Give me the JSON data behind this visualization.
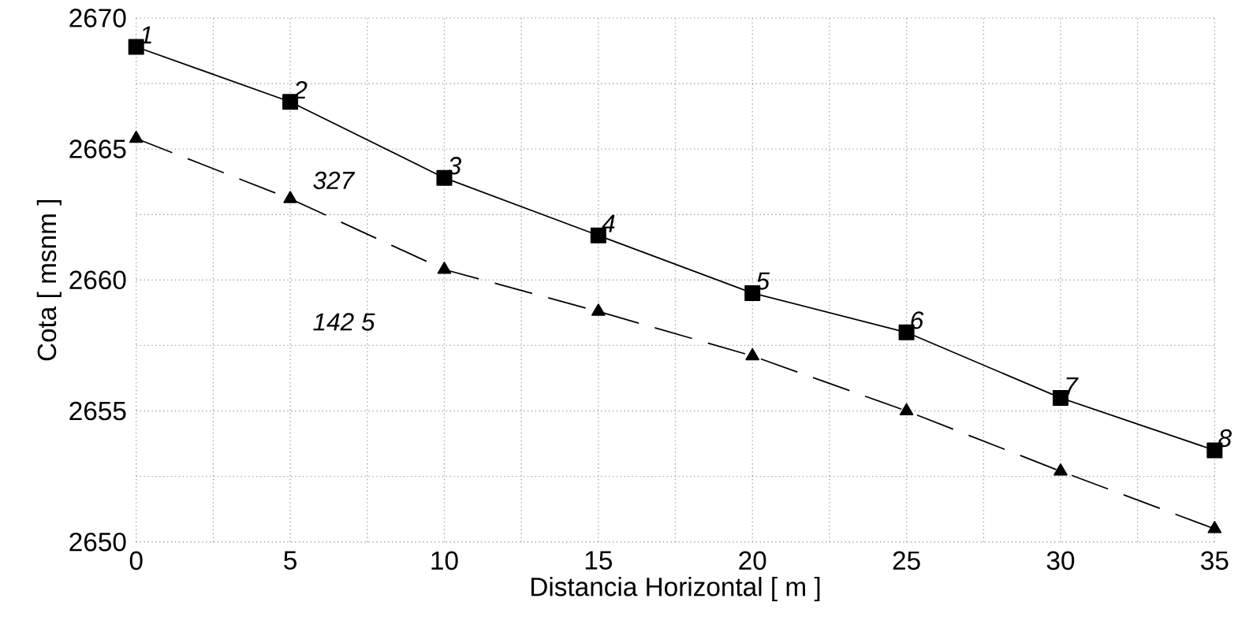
{
  "chart_data": {
    "type": "line",
    "xlabel": "Distancia Horizontal  [ m ]",
    "ylabel": "Cota  [ msnm ]",
    "x": [
      0,
      5,
      10,
      15,
      20,
      25,
      30,
      35
    ],
    "series": [
      {
        "color": "#000000",
        "marker": "square",
        "line_style": "solid",
        "values": [
          2668.9,
          2666.8,
          2663.9,
          2661.7,
          2659.5,
          2658.0,
          2655.5,
          2653.5
        ]
      },
      {
        "color": "#000000",
        "marker": "triangle",
        "line_style": "dashed",
        "values": [
          2665.4,
          2663.1,
          2660.4,
          2658.8,
          2657.1,
          2655.0,
          2652.7,
          2650.5
        ]
      }
    ],
    "xlim": [
      0,
      35
    ],
    "xticks": [
      0,
      5,
      10,
      15,
      20,
      25,
      30,
      35
    ],
    "ylim": [
      2650,
      2670
    ],
    "yticks": [
      2650,
      2655,
      2660,
      2665,
      2670
    ],
    "grid": true,
    "annotations": [
      {
        "text": "1",
        "x": 0,
        "y": 2668.9
      },
      {
        "text": "2",
        "x": 5,
        "y": 2666.8
      },
      {
        "text": "3",
        "x": 10,
        "y": 2663.9
      },
      {
        "text": "4",
        "x": 15,
        "y": 2661.7
      },
      {
        "text": "5",
        "x": 20,
        "y": 2659.5
      },
      {
        "text": "6",
        "x": 25,
        "y": 2658.0
      },
      {
        "text": "7",
        "x": 30,
        "y": 2655.5
      },
      {
        "text": "8",
        "x": 35,
        "y": 2653.5
      },
      "327",
      "142 5"
    ]
  }
}
